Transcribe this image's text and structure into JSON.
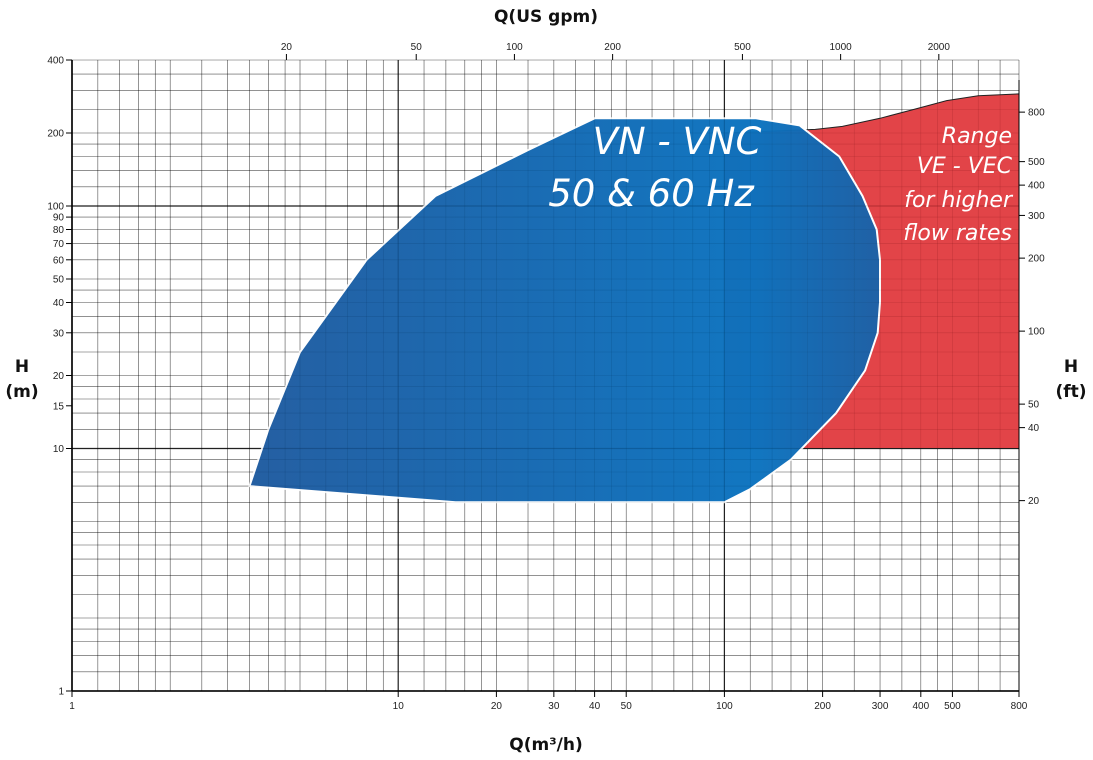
{
  "chart_data": {
    "type": "area",
    "x_axis_bottom": {
      "label": "Q(m³/h)",
      "scale": "log",
      "range": [
        1,
        800
      ],
      "ticks": [
        1,
        10,
        20,
        30,
        40,
        50,
        100,
        200,
        300,
        400,
        500,
        800
      ]
    },
    "x_axis_top": {
      "label": "Q(US gpm)",
      "scale": "log",
      "ticks": [
        20,
        50,
        100,
        200,
        500,
        1000,
        2000
      ]
    },
    "y_axis_left": {
      "label_line1": "H",
      "label_line2": "(m)",
      "scale": "log",
      "range": [
        1,
        400
      ],
      "ticks": [
        1,
        10,
        15,
        20,
        30,
        40,
        50,
        60,
        70,
        80,
        90,
        100,
        200,
        400
      ]
    },
    "y_axis_right": {
      "label_line1": "H",
      "label_line2": "(ft)",
      "scale": "log",
      "ticks": [
        20,
        40,
        50,
        100,
        200,
        300,
        400,
        500,
        800
      ]
    },
    "grid": true,
    "regions": [
      {
        "name_line1": "VN - VNC",
        "name_line2": "50 & 60 Hz",
        "color": "#1b67ad",
        "color_light": "#0077c8",
        "points": [
          [
            3.5,
            7
          ],
          [
            15,
            6
          ],
          [
            100,
            6
          ],
          [
            120,
            6.8
          ],
          [
            160,
            9
          ],
          [
            220,
            14
          ],
          [
            270,
            21
          ],
          [
            295,
            30
          ],
          [
            300,
            40
          ],
          [
            300,
            60
          ],
          [
            293,
            80
          ],
          [
            265,
            110
          ],
          [
            225,
            160
          ],
          [
            170,
            215
          ],
          [
            125,
            230
          ],
          [
            40,
            230
          ],
          [
            25,
            170
          ],
          [
            13,
            110
          ],
          [
            8,
            60
          ],
          [
            5,
            25
          ],
          [
            4,
            12
          ],
          [
            3.5,
            7
          ]
        ]
      },
      {
        "name_line1": "Range",
        "name_line2": "VE - VEC",
        "name_line3": "for higher",
        "name_line4": "flow rates",
        "color": "#e03a3e",
        "points": [
          [
            100,
            10
          ],
          [
            800,
            10
          ],
          [
            800,
            290
          ],
          [
            600,
            285
          ],
          [
            480,
            272
          ],
          [
            380,
            250
          ],
          [
            300,
            230
          ],
          [
            230,
            213
          ],
          [
            190,
            207
          ],
          [
            100,
            200
          ],
          [
            100,
            10
          ]
        ]
      }
    ]
  }
}
